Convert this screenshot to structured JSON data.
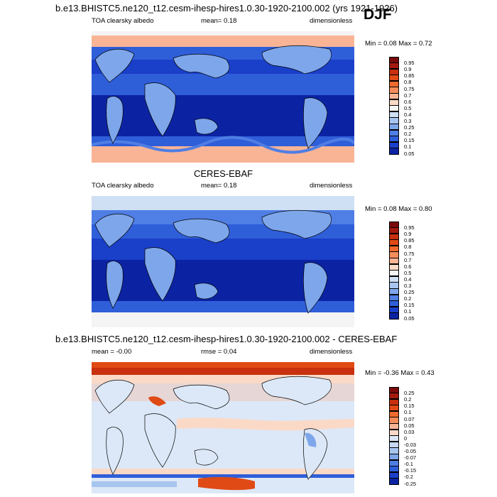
{
  "figure": {
    "title": "b.e13.BHISTC5.ne120_t12.cesm-ihesp-hires1.0.30-1920-2100.002 (yrs 1921-1926)",
    "season": "DJF"
  },
  "panels": [
    {
      "heading": "",
      "variable": "TOA clearsky albedo",
      "stat": "mean=  0.18",
      "units": "dimensionless",
      "minmax": "Min =  0.08 Max =   0.72",
      "colorbar_labels": [
        "0.95",
        "0.9",
        "0.85",
        "0.8",
        "0.75",
        "0.7",
        "0.6",
        "0.5",
        "0.4",
        "0.3",
        "0.25",
        "0.2",
        "0.15",
        "0.1",
        "0.05"
      ]
    },
    {
      "heading": "CERES-EBAF",
      "variable": "TOA clearsky albedo",
      "stat": "mean=  0.18",
      "units": "dimensionless",
      "minmax": "Min =  0.08 Max =   0.80",
      "colorbar_labels": [
        "0.95",
        "0.9",
        "0.85",
        "0.8",
        "0.75",
        "0.7",
        "0.6",
        "0.5",
        "0.4",
        "0.3",
        "0.25",
        "0.2",
        "0.15",
        "0.1",
        "0.05"
      ]
    },
    {
      "heading": "b.e13.BHISTC5.ne120_t12.cesm-ihesp-hires1.0.30-1920-2100.002 - CERES-EBAF",
      "variable": "mean =  -0.00",
      "stat": "rmse =   0.04",
      "units": "dimensionless",
      "minmax": "Min =  -0.36 Max =   0.43",
      "colorbar_labels": [
        "0.25",
        "0.2",
        "0.15",
        "0.1",
        "0.07",
        "0.05",
        "0.03",
        "0",
        "-0.03",
        "-0.05",
        "-0.07",
        "-0.1",
        "-0.15",
        "-0.2",
        "-0.25"
      ]
    }
  ],
  "colors": {
    "abs_scale": [
      "#7a0a0a",
      "#a51a0e",
      "#c8300f",
      "#e04a14",
      "#ef6a2c",
      "#f58c5c",
      "#f9b496",
      "#fbd9c7",
      "#f4f4f4",
      "#cfe0f5",
      "#a7c5ef",
      "#7ea6ea",
      "#4f7ee4",
      "#2f5ed9",
      "#1a3fc8",
      "#0b23a3"
    ],
    "diff_scale": [
      "#7a0a0a",
      "#a51a0e",
      "#c8300f",
      "#e04a14",
      "#ef6a2c",
      "#f58c5c",
      "#f9b496",
      "#fbd9c7",
      "#dce8f7",
      "#c6d8f3",
      "#a7c5ef",
      "#7ea6ea",
      "#4f7ee4",
      "#2f5ed9",
      "#1a3fc8",
      "#0b23a3"
    ]
  },
  "chart_data": [
    {
      "type": "heatmap",
      "title": "TOA clearsky albedo",
      "subtitle": "b.e13.BHISTC5.ne120_t12.cesm-ihesp-hires1.0.30-1920-2100.002 (yrs 1921-1926)",
      "units": "dimensionless",
      "mean": 0.18,
      "min": 0.08,
      "max": 0.72,
      "levels": [
        0.05,
        0.1,
        0.15,
        0.2,
        0.25,
        0.3,
        0.4,
        0.5,
        0.6,
        0.7,
        0.75,
        0.8,
        0.85,
        0.9,
        0.95
      ]
    },
    {
      "type": "heatmap",
      "title": "CERES-EBAF",
      "subtitle": "TOA clearsky albedo",
      "units": "dimensionless",
      "mean": 0.18,
      "min": 0.08,
      "max": 0.8,
      "levels": [
        0.05,
        0.1,
        0.15,
        0.2,
        0.25,
        0.3,
        0.4,
        0.5,
        0.6,
        0.7,
        0.75,
        0.8,
        0.85,
        0.9,
        0.95
      ]
    },
    {
      "type": "heatmap",
      "title": "b.e13.BHISTC5.ne120_t12.cesm-ihesp-hires1.0.30-1920-2100.002 - CERES-EBAF",
      "units": "dimensionless",
      "mean": -0.0,
      "rmse": 0.04,
      "min": -0.36,
      "max": 0.43,
      "levels": [
        -0.25,
        -0.2,
        -0.15,
        -0.1,
        -0.07,
        -0.05,
        -0.03,
        0,
        0.03,
        0.05,
        0.07,
        0.1,
        0.15,
        0.2,
        0.25
      ]
    }
  ]
}
